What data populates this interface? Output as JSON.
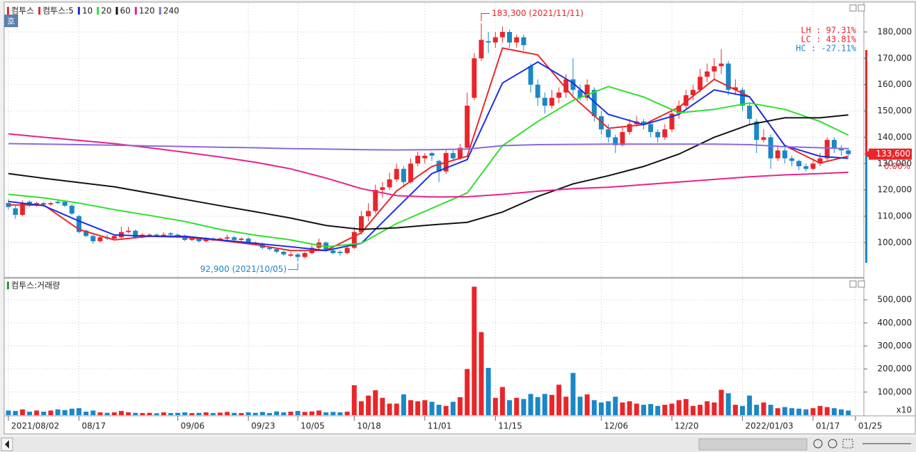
{
  "chart_data": {
    "type": "candlestick",
    "title": "컴투스",
    "badge": "호",
    "up_color": "#e8262a",
    "down_color": "#1b87c6",
    "grid": true,
    "xlim": [
      -0.4,
      121
    ],
    "xticks": [
      {
        "value": 0,
        "label": "2021/08/02"
      },
      {
        "value": 10,
        "label": "08/17"
      },
      {
        "value": 24,
        "label": "09/06"
      },
      {
        "value": 34,
        "label": "09/23"
      },
      {
        "value": 41,
        "label": "10/05"
      },
      {
        "value": 49,
        "label": "10/18"
      },
      {
        "value": 59,
        "label": "11/01"
      },
      {
        "value": 69,
        "label": "11/15"
      },
      {
        "value": 84,
        "label": "12/06"
      },
      {
        "value": 94,
        "label": "12/20"
      },
      {
        "value": 104,
        "label": "2022/01/03"
      },
      {
        "value": 114,
        "label": "01/17"
      },
      {
        "value": 120,
        "label": "01/25"
      }
    ],
    "ylim": [
      87000,
      191100
    ],
    "yticks": [
      {
        "value": 100000,
        "label": "100,000"
      },
      {
        "value": 110000,
        "label": "110,000"
      },
      {
        "value": 120000,
        "label": "120,000"
      },
      {
        "value": 130000,
        "label": "130,000"
      },
      {
        "value": 140000,
        "label": "140,000"
      },
      {
        "value": 150000,
        "label": "150,000"
      },
      {
        "value": 160000,
        "label": "160,000"
      },
      {
        "value": 170000,
        "label": "170,000"
      },
      {
        "value": 180000,
        "label": "180,000"
      }
    ],
    "ohlc": [
      [
        115000,
        116500,
        112500,
        113500
      ],
      [
        113000,
        114000,
        109000,
        110500
      ],
      [
        110500,
        116000,
        110000,
        115000
      ],
      [
        115500,
        116000,
        113500,
        114000
      ],
      [
        114000,
        115500,
        113500,
        115000
      ],
      [
        115000,
        115500,
        114000,
        114500
      ],
      [
        114500,
        115500,
        114000,
        115000
      ],
      [
        115500,
        116000,
        114500,
        115000
      ],
      [
        115500,
        116000,
        113500,
        114000
      ],
      [
        114000,
        114500,
        110500,
        111000
      ],
      [
        110000,
        110500,
        103500,
        104000
      ],
      [
        104500,
        105000,
        102000,
        102500
      ],
      [
        102500,
        103000,
        99500,
        100500
      ],
      [
        100500,
        102500,
        100000,
        102000
      ],
      [
        102000,
        103000,
        101000,
        101500
      ],
      [
        101500,
        103000,
        101000,
        102500
      ],
      [
        102000,
        106000,
        101500,
        104000
      ],
      [
        104000,
        106000,
        103500,
        104500
      ],
      [
        104500,
        105000,
        101500,
        102000
      ],
      [
        102000,
        103500,
        101500,
        103000
      ],
      [
        102500,
        103500,
        102000,
        103000
      ],
      [
        103000,
        103500,
        102000,
        102500
      ],
      [
        102500,
        104000,
        102000,
        103000
      ],
      [
        103500,
        104000,
        102500,
        103000
      ],
      [
        103000,
        103500,
        102000,
        102500
      ],
      [
        102500,
        103000,
        100500,
        101000
      ],
      [
        101000,
        102000,
        100500,
        101500
      ],
      [
        101500,
        102000,
        100000,
        100500
      ],
      [
        100500,
        102000,
        100000,
        101500
      ],
      [
        101500,
        102000,
        100500,
        101000
      ],
      [
        101000,
        102000,
        100500,
        101500
      ],
      [
        101500,
        103000,
        101000,
        102000
      ],
      [
        102000,
        102500,
        100500,
        101000
      ],
      [
        101000,
        102000,
        100500,
        101500
      ],
      [
        101500,
        102000,
        99500,
        100000
      ],
      [
        100000,
        100500,
        99000,
        99500
      ],
      [
        99500,
        100000,
        97500,
        98000
      ],
      [
        98000,
        98500,
        97000,
        97500
      ],
      [
        97500,
        98000,
        96000,
        96500
      ],
      [
        96500,
        97000,
        95000,
        95500
      ],
      [
        95000,
        96500,
        94500,
        95500
      ],
      [
        95500,
        96000,
        92900,
        94500
      ],
      [
        94500,
        96500,
        94000,
        96000
      ],
      [
        96000,
        99000,
        95500,
        98000
      ],
      [
        98000,
        101500,
        97500,
        100000
      ],
      [
        100000,
        100500,
        96500,
        97000
      ],
      [
        97000,
        97500,
        95500,
        96000
      ],
      [
        96500,
        97000,
        95000,
        96000
      ],
      [
        96000,
        99000,
        95500,
        98000
      ],
      [
        98000,
        106000,
        97500,
        104000
      ],
      [
        104000,
        112000,
        103000,
        110000
      ],
      [
        110000,
        115000,
        108000,
        112000
      ],
      [
        112000,
        122000,
        111000,
        120000
      ],
      [
        120000,
        123000,
        117000,
        121000
      ],
      [
        121000,
        126500,
        120000,
        124000
      ],
      [
        124000,
        130000,
        123000,
        128000
      ],
      [
        128000,
        129000,
        121000,
        123000
      ],
      [
        123000,
        132000,
        122500,
        130000
      ],
      [
        130000,
        134500,
        129000,
        133000
      ],
      [
        132000,
        134000,
        130000,
        133000
      ],
      [
        134000,
        134500,
        131000,
        133000
      ],
      [
        131000,
        131500,
        123000,
        127000
      ],
      [
        127000,
        135000,
        126000,
        134000
      ],
      [
        134000,
        135500,
        131000,
        132000
      ],
      [
        132000,
        137500,
        131500,
        136000
      ],
      [
        136000,
        157000,
        135500,
        152000
      ],
      [
        155000,
        172000,
        154000,
        170000
      ],
      [
        170000,
        183300,
        169000,
        177000
      ],
      [
        176500,
        180000,
        172000,
        176000
      ],
      [
        176000,
        180000,
        174000,
        178000
      ],
      [
        178000,
        182000,
        176000,
        180000
      ],
      [
        180000,
        181000,
        174000,
        176000
      ],
      [
        176000,
        179000,
        174000,
        178000
      ],
      [
        178000,
        179000,
        173000,
        175000
      ],
      [
        167000,
        168000,
        157000,
        160000
      ],
      [
        160000,
        162000,
        152000,
        155000
      ],
      [
        155000,
        157000,
        149000,
        152000
      ],
      [
        152000,
        158000,
        151000,
        155000
      ],
      [
        155000,
        159000,
        153000,
        157000
      ],
      [
        157000,
        164000,
        155000,
        162000
      ],
      [
        162000,
        170000,
        156000,
        158000
      ],
      [
        158000,
        160000,
        154000,
        155000
      ],
      [
        155000,
        162000,
        154000,
        160000
      ],
      [
        158000,
        159000,
        146000,
        148000
      ],
      [
        148000,
        150000,
        141000,
        143000
      ],
      [
        143000,
        145000,
        138000,
        140000
      ],
      [
        140000,
        141000,
        134000,
        137000
      ],
      [
        137000,
        144000,
        136500,
        142000
      ],
      [
        142000,
        147000,
        141000,
        145000
      ],
      [
        145000,
        148000,
        144000,
        146000
      ],
      [
        146000,
        147000,
        143000,
        145000
      ],
      [
        145000,
        146000,
        140000,
        142000
      ],
      [
        142000,
        143000,
        138000,
        140000
      ],
      [
        140000,
        145000,
        139000,
        143000
      ],
      [
        143000,
        151000,
        142000,
        149000
      ],
      [
        149000,
        154000,
        147000,
        152000
      ],
      [
        152000,
        158000,
        151000,
        156000
      ],
      [
        156000,
        160000,
        154000,
        158000
      ],
      [
        158000,
        166000,
        157000,
        163000
      ],
      [
        163000,
        168000,
        161000,
        165000
      ],
      [
        165000,
        170000,
        162000,
        167000
      ],
      [
        167000,
        173500,
        164000,
        168000
      ],
      [
        168000,
        169000,
        156000,
        158000
      ],
      [
        158000,
        162000,
        156000,
        159000
      ],
      [
        158000,
        159000,
        150000,
        152000
      ],
      [
        152000,
        153000,
        145000,
        147000
      ],
      [
        146000,
        147000,
        134000,
        139000
      ],
      [
        139000,
        143000,
        138000,
        140000
      ],
      [
        140000,
        141000,
        128000,
        132000
      ],
      [
        132000,
        137000,
        131000,
        135000
      ],
      [
        135000,
        136000,
        130000,
        132000
      ],
      [
        132000,
        133000,
        129000,
        131000
      ],
      [
        131000,
        131500,
        127500,
        129000
      ],
      [
        129000,
        130000,
        127000,
        128000
      ],
      [
        128000,
        132000,
        127500,
        130000
      ],
      [
        130000,
        134000,
        129000,
        132000
      ],
      [
        132000,
        140000,
        131000,
        139000
      ],
      [
        139000,
        140000,
        134000,
        136000
      ],
      [
        136000,
        137000,
        133000,
        135000
      ],
      [
        135000,
        136000,
        133000,
        133600
      ]
    ],
    "ma_x": [
      0,
      5,
      10,
      15,
      20,
      25,
      30,
      35,
      40,
      45,
      50,
      55,
      60,
      65,
      70,
      75,
      80,
      85,
      90,
      95,
      100,
      105,
      110,
      115,
      119
    ],
    "series": [
      {
        "name": "컴투스:5",
        "color": "#e8262a",
        "values": [
          114300,
          114300,
          105000,
          101000,
          102400,
          102000,
          100800,
          99200,
          97000,
          97000,
          103700,
          119600,
          128900,
          132800,
          173900,
          171300,
          155400,
          143400,
          144800,
          151400,
          162000,
          155400,
          136800,
          130200,
          132800
        ]
      },
      {
        "name": "10",
        "color": "#1a2ee0",
        "values": [
          115600,
          114000,
          108200,
          102900,
          102400,
          102400,
          101000,
          99700,
          98400,
          97000,
          99700,
          113000,
          126200,
          131500,
          160600,
          168600,
          160600,
          148700,
          144800,
          148700,
          158000,
          155400,
          136800,
          132800,
          132000
        ]
      },
      {
        "name": "20",
        "color": "#2ee02e",
        "values": [
          118300,
          117000,
          115000,
          112500,
          110300,
          108000,
          105000,
          102800,
          101000,
          98400,
          99700,
          107200,
          113000,
          118800,
          136800,
          146000,
          154000,
          159300,
          155300,
          149300,
          150600,
          153000,
          150600,
          146000,
          140800
        ]
      },
      {
        "name": "60",
        "color": "#111111",
        "values": [
          126200,
          124400,
          122800,
          121200,
          118800,
          116400,
          114000,
          111700,
          109300,
          106500,
          105000,
          105600,
          106700,
          107700,
          111600,
          117500,
          122300,
          125400,
          128900,
          133600,
          140000,
          144800,
          147400,
          147400,
          148500
        ]
      },
      {
        "name": "120",
        "color": "#e8208c",
        "values": [
          141300,
          140000,
          138800,
          137600,
          136000,
          134300,
          132500,
          130500,
          128000,
          124500,
          120500,
          117800,
          117300,
          117400,
          118300,
          119500,
          120500,
          121000,
          122000,
          123000,
          124000,
          125000,
          125700,
          126200,
          126700
        ]
      },
      {
        "name": "240",
        "color": "#8a68e0",
        "values": [
          137600,
          137400,
          137200,
          137000,
          136700,
          136500,
          136200,
          136000,
          135700,
          135500,
          135300,
          135200,
          135300,
          135500,
          136800,
          137200,
          137300,
          137400,
          137400,
          137400,
          137400,
          137200,
          136400,
          136000,
          135700
        ]
      }
    ],
    "annotations": [
      {
        "text": "183,300 (2021/11/11)",
        "x": 67,
        "y": 183300,
        "color": "#e8262a"
      },
      {
        "text": "92,900 (2021/10/05)",
        "x": 41,
        "y": 92900,
        "color": "#1b87c6"
      }
    ],
    "stats": [
      {
        "text": "LH :  97.31%",
        "color": "#e8262a"
      },
      {
        "text": "LC :  43.81%",
        "color": "#e8262a"
      },
      {
        "text": "HC : -27.11%",
        "color": "#1b87c6"
      }
    ],
    "price_tag": {
      "value": 133600,
      "label": "133,600"
    },
    "change_label": "0.00%",
    "volume": {
      "title": "컴투스:거래량",
      "color": "#2a9a2a",
      "unit_label": "x10",
      "ylim": [
        0,
        588000
      ],
      "yticks": [
        {
          "value": 100000,
          "label": "100,000"
        },
        {
          "value": 200000,
          "label": "200,000"
        },
        {
          "value": 300000,
          "label": "300,000"
        },
        {
          "value": 400000,
          "label": "400,000"
        },
        {
          "value": 500000,
          "label": "500,000"
        }
      ],
      "values": [
        20000,
        18000,
        25000,
        15000,
        20000,
        15000,
        20000,
        25000,
        22000,
        28000,
        30000,
        15000,
        20000,
        12000,
        10000,
        12000,
        18000,
        12000,
        10000,
        9000,
        10000,
        8000,
        12000,
        9000,
        10000,
        12000,
        9000,
        10000,
        12000,
        9000,
        11000,
        14000,
        10000,
        9000,
        12000,
        10000,
        14000,
        9000,
        16000,
        12000,
        15000,
        18000,
        14000,
        16000,
        20000,
        12000,
        14000,
        12000,
        15000,
        130000,
        60000,
        85000,
        108000,
        75000,
        50000,
        50000,
        90000,
        65000,
        60000,
        65000,
        58000,
        45000,
        40000,
        58000,
        78000,
        200000,
        557000,
        360000,
        205000,
        75000,
        122000,
        65000,
        75000,
        70000,
        92000,
        78000,
        92000,
        88000,
        132000,
        80000,
        183000,
        80000,
        90000,
        65000,
        55000,
        60000,
        80000,
        55000,
        60000,
        50000,
        45000,
        48000,
        40000,
        45000,
        50000,
        65000,
        70000,
        40000,
        45000,
        60000,
        55000,
        110000,
        95000,
        45000,
        40000,
        85000,
        45000,
        55000,
        45000,
        30000,
        35000,
        30000,
        28000,
        25000,
        30000,
        40000,
        35000,
        30000,
        25000,
        20000
      ]
    }
  }
}
